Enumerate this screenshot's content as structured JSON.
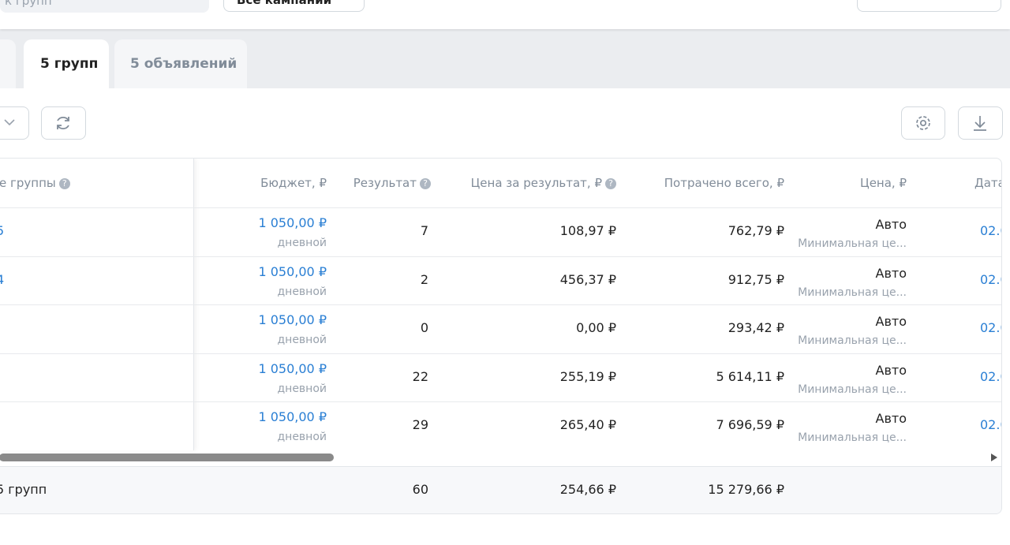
{
  "search": {
    "placeholder": "к групп"
  },
  "filter": "Все кампании",
  "tabs": [
    "5 групп",
    "5 объявлений"
  ],
  "table": {
    "headers": [
      "е группы",
      "Бюджет, ₽",
      "Результат",
      "Цена за результат, ₽",
      "Потрачено всего, ₽",
      "Цена, ₽",
      "Дата"
    ],
    "rows": [
      {
        "name": "5",
        "budget": "1 050,00 ₽",
        "budget_type": "дневной",
        "result": "7",
        "cost_per_result": "108,97 ₽",
        "spent": "762,79 ₽",
        "price": "Авто",
        "price_note": "Минимальная це...",
        "date": "02.0"
      },
      {
        "name": "4",
        "budget": "1 050,00 ₽",
        "budget_type": "дневной",
        "result": "2",
        "cost_per_result": "456,37 ₽",
        "spent": "912,75 ₽",
        "price": "Авто",
        "price_note": "Минимальная це...",
        "date": "02.0"
      },
      {
        "budget": "1 050,00 ₽",
        "budget_type": "дневной",
        "result": "0",
        "cost_per_result": "0,00 ₽",
        "spent": "293,42 ₽",
        "price": "Авто",
        "price_note": "Минимальная це...",
        "date": "02.0"
      },
      {
        "budget": "1 050,00 ₽",
        "budget_type": "дневной",
        "result": "22",
        "cost_per_result": "255,19 ₽",
        "spent": "5 614,11 ₽",
        "price": "Авто",
        "price_note": "Минимальная це...",
        "date": "02.0"
      },
      {
        "budget": "1 050,00 ₽",
        "budget_type": "дневной",
        "result": "29",
        "cost_per_result": "265,40 ₽",
        "spent": "7 696,59 ₽",
        "price": "Авто",
        "price_note": "Минимальная це...",
        "date": "02.0"
      }
    ],
    "footer": {
      "label": "5 групп",
      "result": "60",
      "cost_per_result": "254,66 ₽",
      "spent": "15 279,66 ₽"
    }
  }
}
